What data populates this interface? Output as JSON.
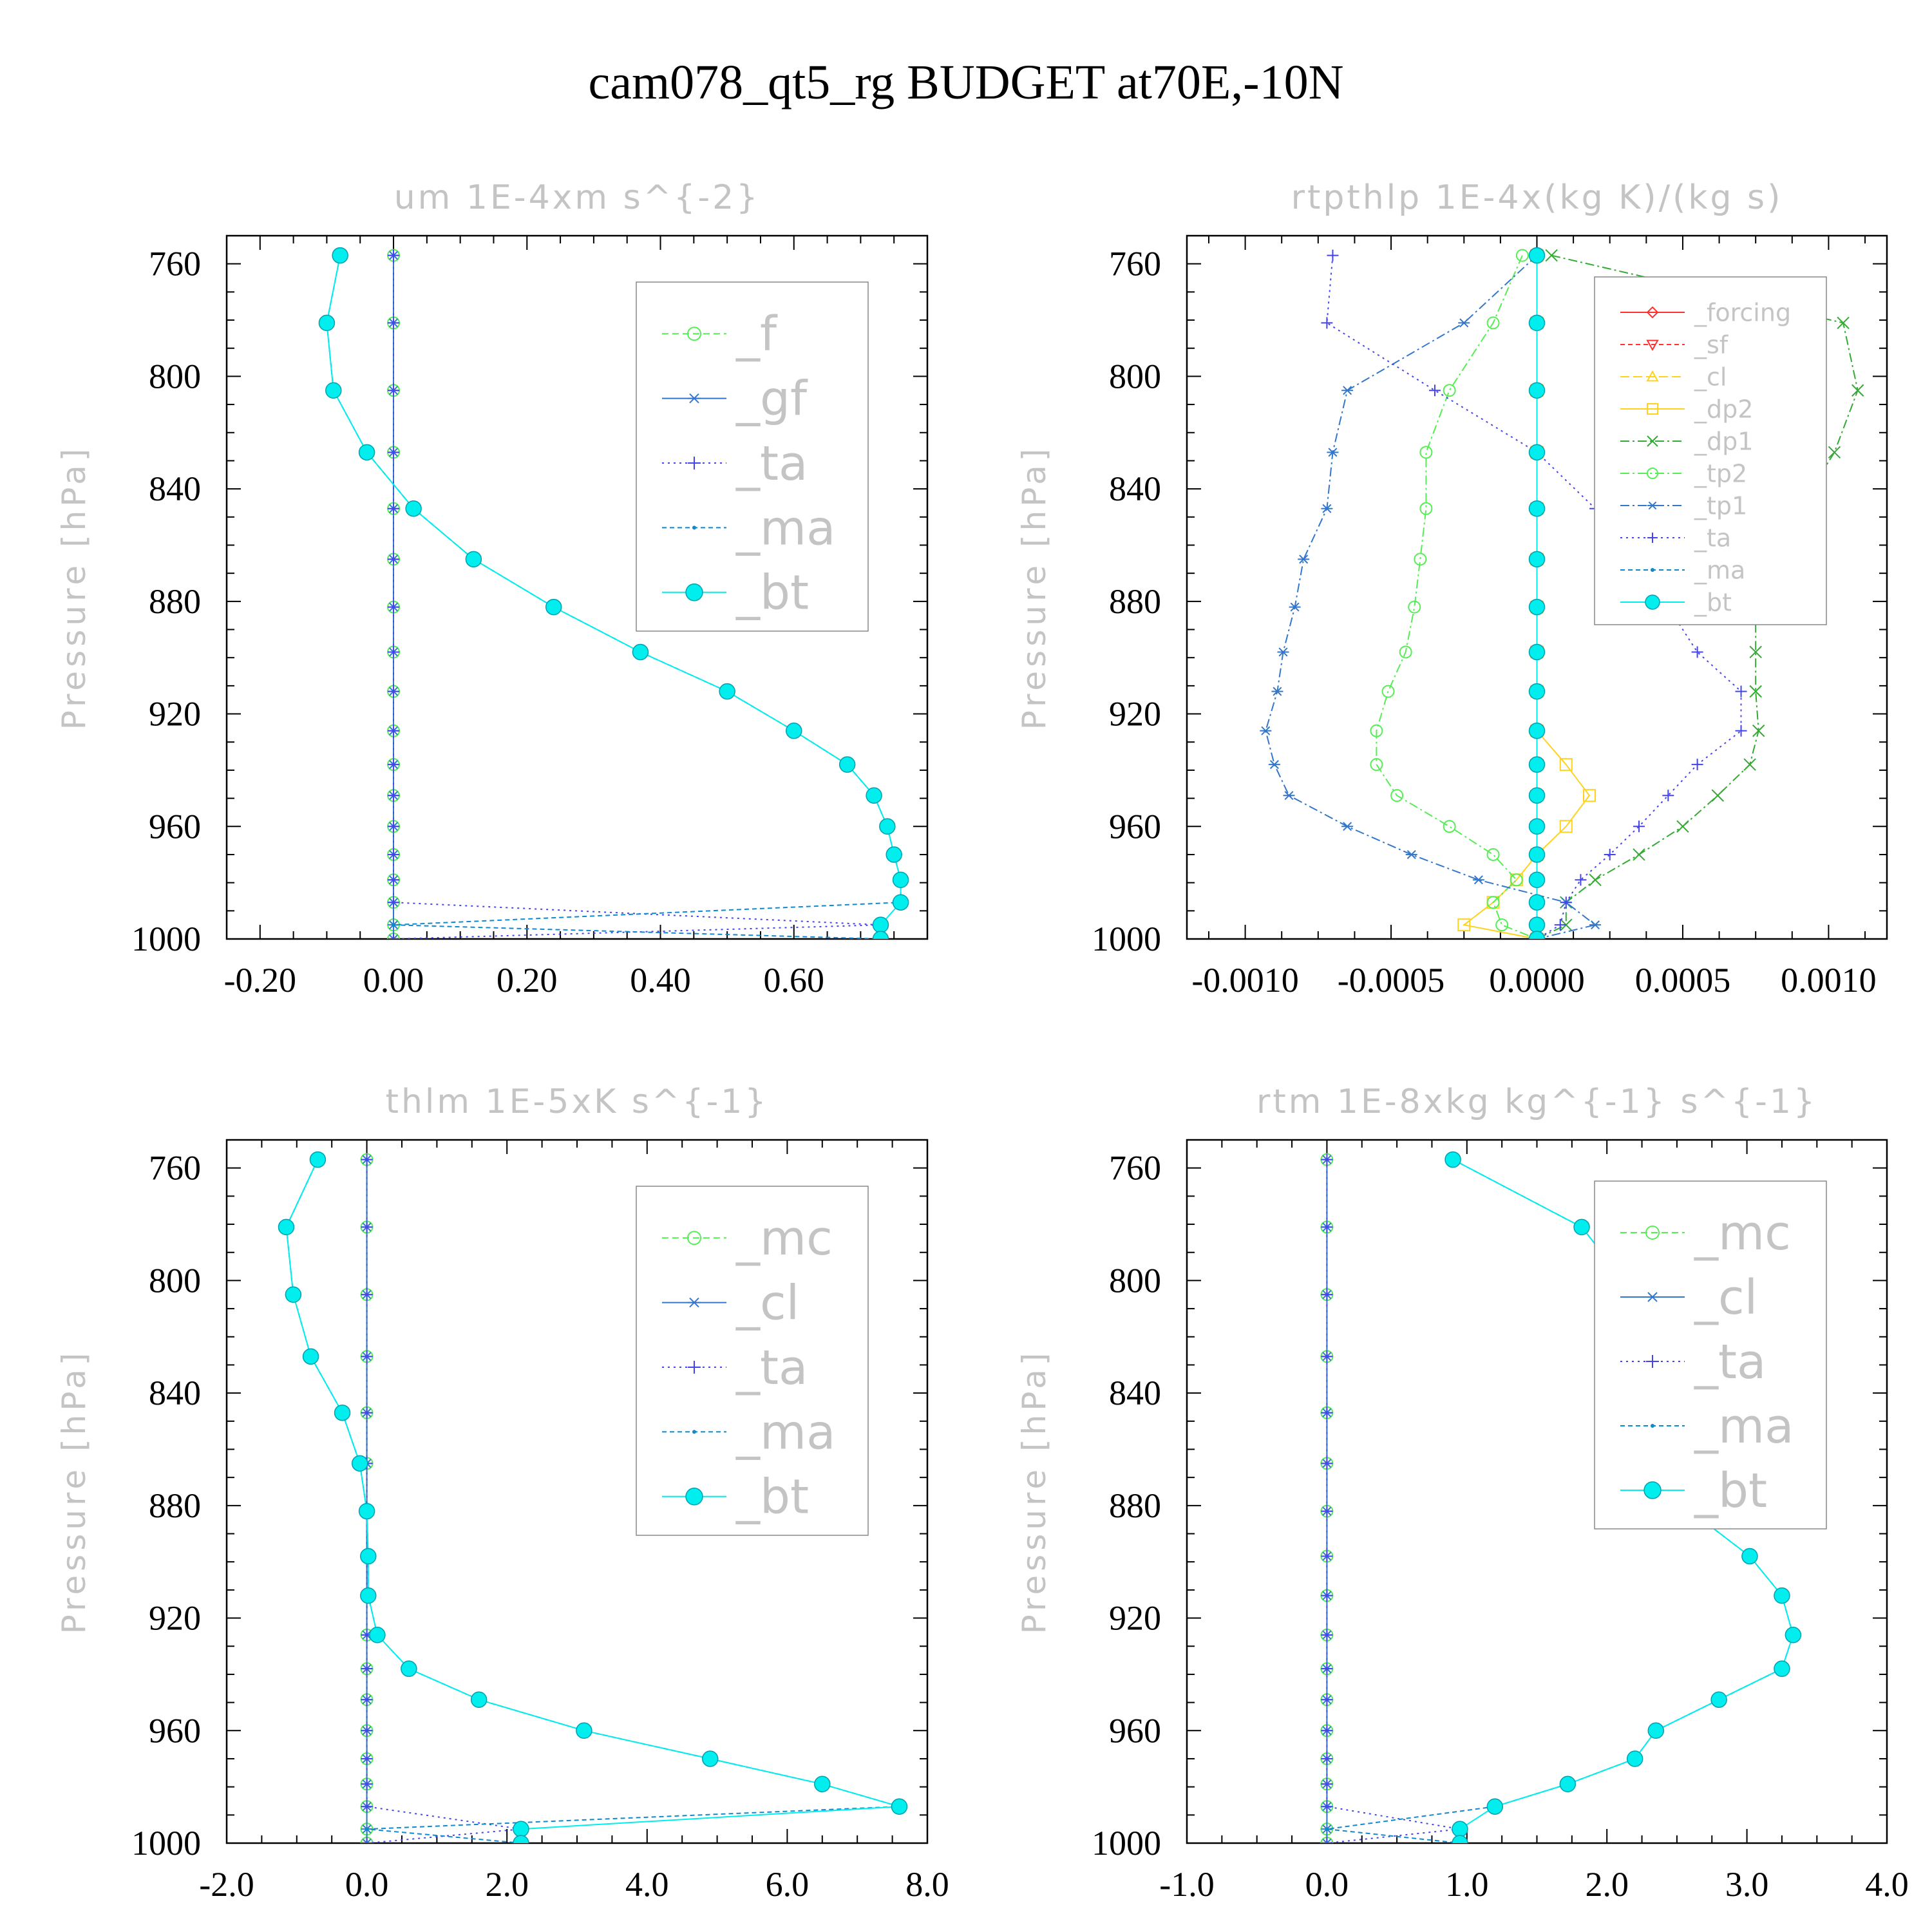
{
  "title": "cam078_qt5_rg  BUDGET at70E,-10N",
  "colors": {
    "forcing": "#ff3030",
    "sf": "#ff3030",
    "cl": "#ffd21e",
    "dp2": "#ffd21e",
    "dp1": "#33aa33",
    "tp2": "#55ee55",
    "tp1": "#3377cc",
    "ta": "#4444ee",
    "ma": "#1188cc",
    "bt": "#00eeee",
    "f": "#55ee55",
    "gf": "#3377cc",
    "mc": "#55ee55"
  },
  "chart_data": [
    {
      "type": "line",
      "title": "um  1E-4xm s^{-2}",
      "ylabel": "Pressure [hPa]",
      "xlim": [
        -0.25,
        0.8
      ],
      "ylim": [
        1000,
        750
      ],
      "xticks": [
        -0.2,
        0.0,
        0.2,
        0.4,
        0.6
      ],
      "xtick_labels": [
        "-0.20",
        "0.00",
        "0.20",
        "0.40",
        "0.60"
      ],
      "yticks": [
        760,
        800,
        840,
        880,
        920,
        960,
        1000
      ],
      "legend": [
        "_f",
        "_gf",
        "_ta",
        "_ma",
        "_bt"
      ],
      "legend_placement": "top-right",
      "levels": [
        757,
        781,
        805,
        827,
        847,
        865,
        882,
        898,
        912,
        926,
        938,
        949,
        960,
        970,
        979,
        987,
        995,
        1000
      ],
      "series": [
        {
          "name": "_f",
          "color": "f",
          "marker": "circle",
          "dash": "10,6",
          "values": [
            0,
            0,
            0,
            0,
            0,
            0,
            0,
            0,
            0,
            0,
            0,
            0,
            0,
            0,
            0,
            0,
            0,
            0
          ]
        },
        {
          "name": "_gf",
          "color": "gf",
          "marker": "star",
          "dash": "none",
          "values": [
            0,
            0,
            0,
            0,
            0,
            0,
            0,
            0,
            0,
            0,
            0,
            0,
            0,
            0,
            0,
            0,
            0,
            0
          ]
        },
        {
          "name": "_ta",
          "color": "ta",
          "marker": "plus",
          "dash": "3,6",
          "values": [
            0,
            0,
            0,
            0,
            0,
            0,
            0,
            0,
            0,
            0,
            0,
            0,
            0,
            0,
            0,
            0,
            0.73,
            0
          ]
        },
        {
          "name": "_ma",
          "color": "ma",
          "marker": "dot",
          "dash": "7,5",
          "values": [
            -0.08,
            -0.1,
            -0.09,
            -0.04,
            0.03,
            0.12,
            0.24,
            0.37,
            0.5,
            0.6,
            0.68,
            0.72,
            0.74,
            0.75,
            0.76,
            0.76,
            0,
            0.73
          ]
        },
        {
          "name": "_bt",
          "color": "bt",
          "marker": "filled",
          "dash": "none",
          "values": [
            -0.08,
            -0.1,
            -0.09,
            -0.04,
            0.03,
            0.12,
            0.24,
            0.37,
            0.5,
            0.6,
            0.68,
            0.72,
            0.74,
            0.75,
            0.76,
            0.76,
            0.73,
            0.73
          ]
        }
      ]
    },
    {
      "type": "line",
      "title": "rtpthlp  1E-4x(kg K)/(kg s)",
      "ylabel": "Pressure [hPa]",
      "xlim": [
        -0.0012,
        0.0012
      ],
      "ylim": [
        1000,
        750
      ],
      "xticks": [
        -0.001,
        -0.0005,
        0.0,
        0.0005,
        0.001
      ],
      "xtick_labels": [
        "-0.0010",
        "-0.0005",
        "0.0000",
        "0.0005",
        "0.0010"
      ],
      "yticks": [
        760,
        800,
        840,
        880,
        920,
        960,
        1000
      ],
      "legend": [
        "_forcing",
        "_sf",
        "_cl",
        "_dp2",
        "_dp1",
        "_tp2",
        "_tp1",
        "_ta",
        "_ma",
        "_bt"
      ],
      "legend_placement": "top-right",
      "levels": [
        757,
        781,
        805,
        827,
        847,
        865,
        882,
        898,
        912,
        926,
        938,
        949,
        960,
        970,
        979,
        987,
        995,
        1000
      ],
      "series": [
        {
          "name": "_forcing",
          "color": "forcing",
          "marker": "diamond",
          "dash": "none",
          "values": [
            0,
            0,
            0,
            0,
            0,
            0,
            0,
            0,
            0,
            0,
            0,
            0,
            0,
            0,
            0,
            0,
            0,
            0
          ]
        },
        {
          "name": "_sf",
          "color": "sf",
          "marker": "tri-down",
          "dash": "7,5",
          "values": [
            0,
            0,
            0,
            0,
            0,
            0,
            0,
            0,
            0,
            0,
            0,
            0,
            0,
            0,
            0,
            0,
            0,
            0
          ]
        },
        {
          "name": "_cl",
          "color": "cl",
          "marker": "tri-up",
          "dash": "14,6",
          "values": [
            0,
            0,
            0,
            0,
            0,
            0,
            0,
            0,
            0,
            0,
            0,
            0,
            0,
            0,
            0,
            0,
            0,
            0
          ]
        },
        {
          "name": "_dp2",
          "color": "dp2",
          "marker": "square",
          "dash": "none",
          "values": [
            0,
            0,
            0,
            0,
            0,
            0,
            0,
            0,
            0,
            0,
            0.0001,
            0.00018,
            0.0001,
            0,
            -7e-05,
            -0.00015,
            -0.00025,
            0
          ]
        },
        {
          "name": "_dp1",
          "color": "dp1",
          "marker": "x",
          "dash": "14,5,3,5",
          "values": [
            5e-05,
            0.00105,
            0.0011,
            0.00102,
            0.0009,
            0.0008,
            0.00075,
            0.00075,
            0.00075,
            0.00076,
            0.00073,
            0.00062,
            0.0005,
            0.00035,
            0.0002,
            0.0001,
            0.0001,
            0
          ]
        },
        {
          "name": "_tp2",
          "color": "tp2",
          "marker": "circle",
          "dash": "14,5,3,5",
          "values": [
            -5e-05,
            -0.00015,
            -0.0003,
            -0.00038,
            -0.00038,
            -0.0004,
            -0.00042,
            -0.00045,
            -0.00051,
            -0.00055,
            -0.00055,
            -0.00048,
            -0.0003,
            -0.00015,
            -7e-05,
            -0.00015,
            -0.00012,
            0
          ]
        },
        {
          "name": "_tp1",
          "color": "tp1",
          "marker": "star",
          "dash": "14,5,3,5",
          "values": [
            0,
            -0.00025,
            -0.00065,
            -0.0007,
            -0.00072,
            -0.0008,
            -0.00083,
            -0.00087,
            -0.00089,
            -0.00093,
            -0.0009,
            -0.00085,
            -0.00065,
            -0.00043,
            -0.0002,
            0.0001,
            0.0002,
            0
          ]
        },
        {
          "name": "_ta",
          "color": "ta",
          "marker": "plus",
          "dash": "3,6",
          "values": [
            -0.0007,
            -0.00072,
            -0.00035,
            0,
            0.0002,
            0.0003,
            0.00045,
            0.00055,
            0.0007,
            0.0007,
            0.00055,
            0.00045,
            0.00035,
            0.00025,
            0.00015,
            0.0001,
            8e-05,
            0
          ]
        },
        {
          "name": "_ma",
          "color": "ma",
          "marker": "dot",
          "dash": "7,5",
          "values": [
            0,
            0,
            0,
            0,
            0,
            0,
            0,
            0,
            0,
            0,
            0,
            0,
            0,
            0,
            0,
            0,
            0,
            0
          ]
        },
        {
          "name": "_bt",
          "color": "bt",
          "marker": "filled",
          "dash": "none",
          "values": [
            0,
            0,
            0,
            0,
            0,
            0,
            0,
            0,
            0,
            0,
            0,
            0,
            0,
            0,
            0,
            0,
            0,
            0
          ]
        }
      ]
    },
    {
      "type": "line",
      "title": "thlm  1E-5xK s^{-1}",
      "ylabel": "Pressure [hPa]",
      "xlim": [
        -2.0,
        8.0
      ],
      "ylim": [
        1000,
        750
      ],
      "xticks": [
        -2.0,
        0.0,
        2.0,
        4.0,
        6.0,
        8.0
      ],
      "xtick_labels": [
        "-2.0",
        "0.0",
        "2.0",
        "4.0",
        "6.0",
        "8.0"
      ],
      "yticks": [
        760,
        800,
        840,
        880,
        920,
        960,
        1000
      ],
      "legend": [
        "_mc",
        "_cl",
        "_ta",
        "_ma",
        "_bt"
      ],
      "legend_placement": "top-right",
      "levels": [
        757,
        781,
        805,
        827,
        847,
        865,
        882,
        898,
        912,
        926,
        938,
        949,
        960,
        970,
        979,
        987,
        995,
        1000
      ],
      "series": [
        {
          "name": "_mc",
          "color": "mc",
          "marker": "circle",
          "dash": "10,6",
          "values": [
            0,
            0,
            0,
            0,
            0,
            0,
            0,
            0,
            0,
            0,
            0,
            0,
            0,
            0,
            0,
            0,
            0,
            0
          ]
        },
        {
          "name": "_cl",
          "color": "gf",
          "marker": "star",
          "dash": "none",
          "values": [
            0,
            0,
            0,
            0,
            0,
            0,
            0,
            0,
            0,
            0,
            0,
            0,
            0,
            0,
            0,
            0,
            0,
            0
          ]
        },
        {
          "name": "_ta",
          "color": "ta",
          "marker": "plus",
          "dash": "3,6",
          "values": [
            0,
            0,
            0,
            0,
            0,
            0,
            0,
            0,
            0,
            0,
            0,
            0,
            0,
            0,
            0,
            0,
            2.2,
            0
          ]
        },
        {
          "name": "_ma",
          "color": "ma",
          "marker": "dot",
          "dash": "7,5",
          "values": [
            -0.7,
            -1.15,
            -1.05,
            -0.8,
            -0.35,
            -0.1,
            0.0,
            0.02,
            0.02,
            0.15,
            0.6,
            1.6,
            3.1,
            4.9,
            6.5,
            7.6,
            0,
            2.2
          ]
        },
        {
          "name": "_bt",
          "color": "bt",
          "marker": "filled",
          "dash": "none",
          "values": [
            -0.7,
            -1.15,
            -1.05,
            -0.8,
            -0.35,
            -0.1,
            0.0,
            0.02,
            0.02,
            0.15,
            0.6,
            1.6,
            3.1,
            4.9,
            6.5,
            7.6,
            2.2,
            2.2
          ]
        }
      ]
    },
    {
      "type": "line",
      "title": "rtm  1E-8xkg kg^{-1} s^{-1}",
      "ylabel": "Pressure [hPa]",
      "xlim": [
        -1.0,
        4.0
      ],
      "ylim": [
        1000,
        750
      ],
      "xticks": [
        -1.0,
        0.0,
        1.0,
        2.0,
        3.0,
        4.0
      ],
      "xtick_labels": [
        "-1.0",
        "0.0",
        "1.0",
        "2.0",
        "3.0",
        "4.0"
      ],
      "yticks": [
        760,
        800,
        840,
        880,
        920,
        960,
        1000
      ],
      "legend": [
        "_mc",
        "_cl",
        "_ta",
        "_ma",
        "_bt"
      ],
      "legend_placement": "top-right",
      "levels": [
        757,
        781,
        805,
        827,
        847,
        865,
        882,
        898,
        912,
        926,
        938,
        949,
        960,
        970,
        979,
        987,
        995,
        1000
      ],
      "series": [
        {
          "name": "_mc",
          "color": "mc",
          "marker": "circle",
          "dash": "10,6",
          "values": [
            0,
            0,
            0,
            0,
            0,
            0,
            0,
            0,
            0,
            0,
            0,
            0,
            0,
            0,
            0,
            0,
            0,
            0
          ]
        },
        {
          "name": "_cl",
          "color": "gf",
          "marker": "star",
          "dash": "none",
          "values": [
            0,
            0,
            0,
            0,
            0,
            0,
            0,
            0,
            0,
            0,
            0,
            0,
            0,
            0,
            0,
            0,
            0,
            0
          ]
        },
        {
          "name": "_ta",
          "color": "ta",
          "marker": "plus",
          "dash": "3,6",
          "values": [
            0,
            0,
            0,
            0,
            0,
            0,
            0,
            0,
            0,
            0,
            0,
            0,
            0,
            0,
            0,
            0,
            0.95,
            0
          ]
        },
        {
          "name": "_ma",
          "color": "ma",
          "marker": "dot",
          "dash": "7,5",
          "values": [
            0.9,
            1.82,
            2.2,
            2.1,
            2.02,
            2.3,
            2.6,
            3.02,
            3.25,
            3.33,
            3.25,
            2.8,
            2.35,
            2.2,
            1.72,
            1.2,
            0,
            0.95
          ]
        },
        {
          "name": "_bt",
          "color": "bt",
          "marker": "filled",
          "dash": "none",
          "values": [
            0.9,
            1.82,
            2.2,
            2.1,
            2.02,
            2.3,
            2.6,
            3.02,
            3.25,
            3.33,
            3.25,
            2.8,
            2.35,
            2.2,
            1.72,
            1.2,
            0.95,
            0.95
          ]
        }
      ]
    }
  ]
}
